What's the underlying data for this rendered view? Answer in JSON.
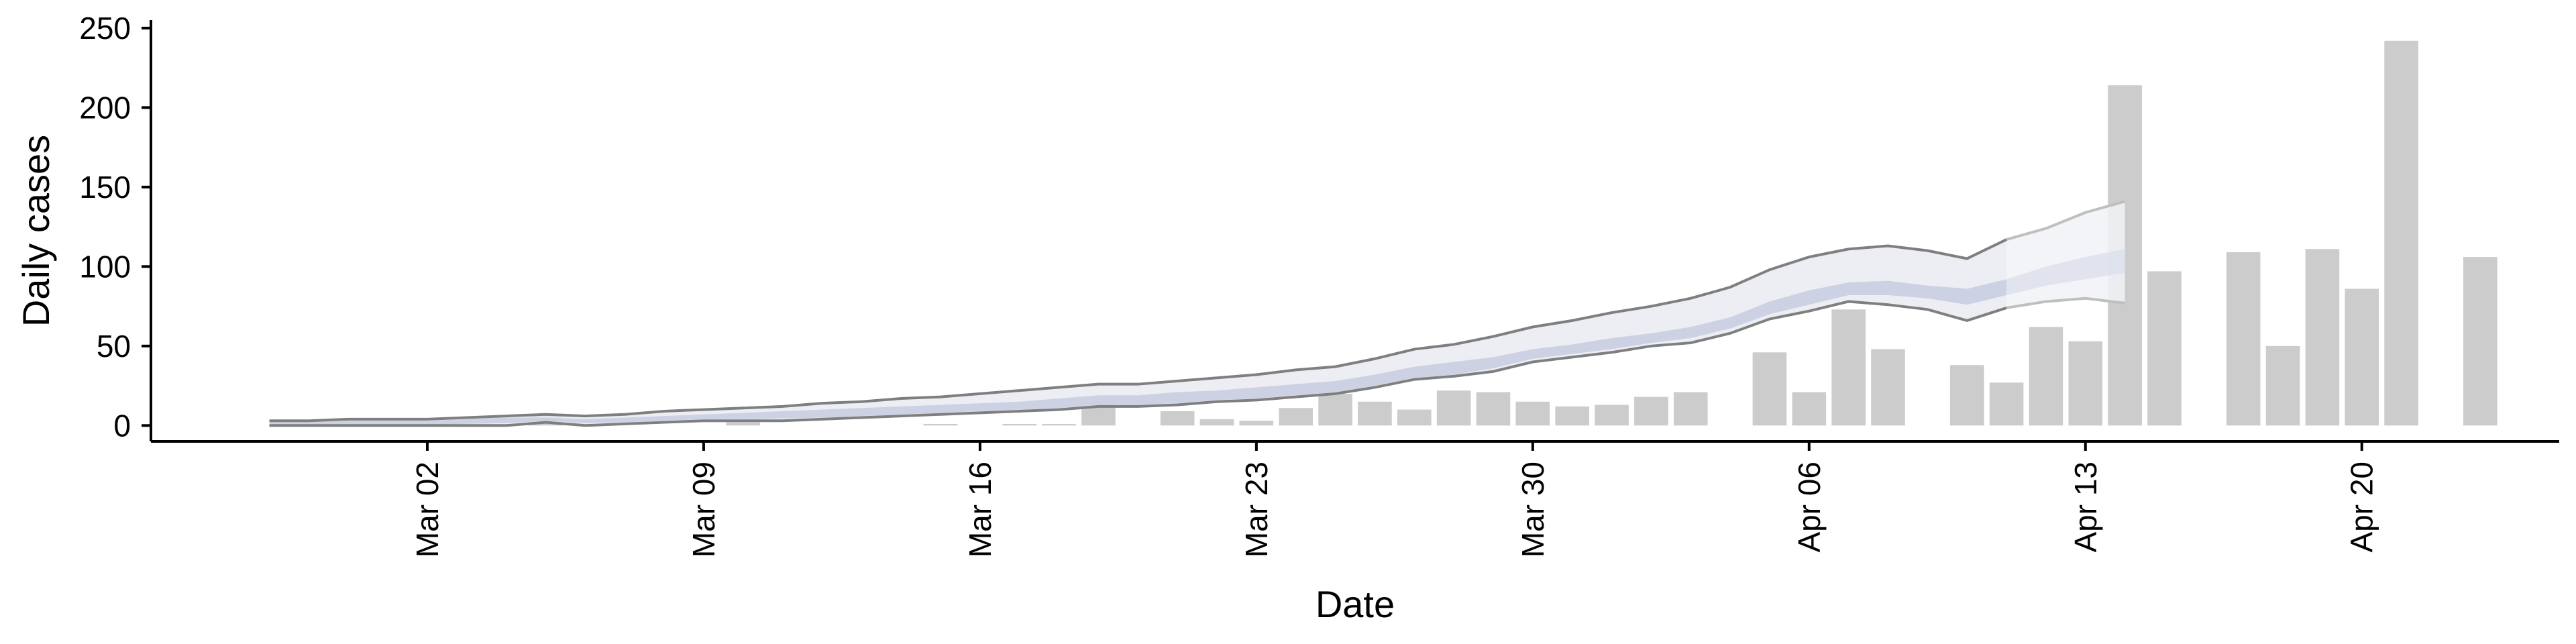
{
  "chart_data": {
    "type": "bar",
    "xlabel": "Date",
    "ylabel": "Daily cases",
    "ylim": [
      -10,
      255
    ],
    "y_ticks": [
      0,
      50,
      100,
      150,
      200,
      250
    ],
    "x_ticks": [
      {
        "date": "2020-03-02",
        "label": "Mar 02"
      },
      {
        "date": "2020-03-09",
        "label": "Mar 09"
      },
      {
        "date": "2020-03-16",
        "label": "Mar 16"
      },
      {
        "date": "2020-03-23",
        "label": "Mar 23"
      },
      {
        "date": "2020-03-30",
        "label": "Mar 30"
      },
      {
        "date": "2020-04-06",
        "label": "Apr 06"
      },
      {
        "date": "2020-04-13",
        "label": "Apr 13"
      },
      {
        "date": "2020-04-20",
        "label": "Apr 20"
      }
    ],
    "xlim": [
      "2020-02-24",
      "2020-04-25"
    ],
    "bars": {
      "dates": [
        "2020-03-05",
        "2020-03-06",
        "2020-03-10",
        "2020-03-15",
        "2020-03-17",
        "2020-03-18",
        "2020-03-19",
        "2020-03-21",
        "2020-03-22",
        "2020-03-23",
        "2020-03-24",
        "2020-03-25",
        "2020-03-26",
        "2020-03-27",
        "2020-03-28",
        "2020-03-29",
        "2020-03-30",
        "2020-03-31",
        "2020-04-01",
        "2020-04-02",
        "2020-04-03",
        "2020-04-05",
        "2020-04-06",
        "2020-04-07",
        "2020-04-08",
        "2020-04-10",
        "2020-04-11",
        "2020-04-12",
        "2020-04-13",
        "2020-04-14",
        "2020-04-15",
        "2020-04-17",
        "2020-04-18",
        "2020-04-19",
        "2020-04-20",
        "2020-04-21",
        "2020-04-23"
      ],
      "values": [
        7,
        1,
        2,
        1,
        1,
        1,
        15,
        9,
        4,
        3,
        11,
        20,
        15,
        10,
        22,
        21,
        15,
        12,
        13,
        18,
        21,
        46,
        21,
        73,
        48,
        38,
        27,
        62,
        53,
        214,
        97,
        109,
        50,
        111,
        86,
        242,
        106
      ],
      "color": "#cccccc"
    },
    "ribbon_dates": [
      "2020-02-27",
      "2020-02-28",
      "2020-02-29",
      "2020-03-01",
      "2020-03-02",
      "2020-03-03",
      "2020-03-04",
      "2020-03-05",
      "2020-03-06",
      "2020-03-07",
      "2020-03-08",
      "2020-03-09",
      "2020-03-10",
      "2020-03-11",
      "2020-03-12",
      "2020-03-13",
      "2020-03-14",
      "2020-03-15",
      "2020-03-16",
      "2020-03-17",
      "2020-03-18",
      "2020-03-19",
      "2020-03-20",
      "2020-03-21",
      "2020-03-22",
      "2020-03-23",
      "2020-03-24",
      "2020-03-25",
      "2020-03-26",
      "2020-03-27",
      "2020-03-28",
      "2020-03-29",
      "2020-03-30",
      "2020-03-31",
      "2020-04-01",
      "2020-04-02",
      "2020-04-03",
      "2020-04-04",
      "2020-04-05",
      "2020-04-06",
      "2020-04-07",
      "2020-04-08",
      "2020-04-09",
      "2020-04-10",
      "2020-04-11",
      "2020-04-12",
      "2020-04-13",
      "2020-04-14"
    ],
    "outer_upper": [
      3,
      3,
      4,
      4,
      4,
      5,
      6,
      7,
      6,
      7,
      9,
      10,
      11,
      12,
      14,
      15,
      17,
      18,
      20,
      22,
      24,
      26,
      26,
      28,
      30,
      32,
      35,
      37,
      42,
      48,
      51,
      56,
      62,
      66,
      71,
      75,
      80,
      87,
      98,
      106,
      111,
      113,
      110,
      105,
      117,
      124,
      134,
      141
    ],
    "outer_lower": [
      0,
      0,
      0,
      0,
      0,
      0,
      0,
      2,
      0,
      1,
      2,
      3,
      3,
      3,
      4,
      5,
      6,
      7,
      8,
      9,
      10,
      12,
      12,
      13,
      15,
      16,
      18,
      20,
      24,
      29,
      31,
      34,
      40,
      43,
      46,
      50,
      52,
      58,
      67,
      72,
      78,
      76,
      73,
      66,
      74,
      78,
      80,
      77
    ],
    "band_upper": [
      2.5,
      2.5,
      3,
      3,
      3,
      4,
      5,
      5,
      4,
      5,
      6,
      7,
      8,
      9,
      10,
      11,
      12,
      13,
      14,
      15,
      17,
      19,
      19,
      21,
      22,
      24,
      26,
      28,
      32,
      37,
      40,
      43,
      48,
      51,
      55,
      58,
      62,
      68,
      78,
      85,
      90,
      91,
      88,
      86,
      92,
      100,
      106,
      111
    ],
    "band_lower": [
      0.5,
      0.5,
      0.5,
      0.5,
      0.5,
      1,
      1.5,
      3,
      1.5,
      2,
      3,
      4,
      4,
      4.5,
      5,
      6,
      7,
      8,
      9,
      10,
      11,
      13,
      13,
      14,
      16,
      17,
      19,
      21,
      25,
      30,
      32,
      36,
      42,
      45,
      48,
      52,
      55,
      61,
      70,
      76,
      82,
      82,
      80,
      76,
      82,
      88,
      92,
      96
    ],
    "colors": {
      "outer_fill": "#e9ebf2",
      "outer_fill_future": "#f1f2f6",
      "band_fill": "#c7cddf",
      "band_fill_future": "#dde1ec",
      "line": "#7f7f7f",
      "line_future": "#bfbfbf",
      "axis": "#000000"
    },
    "future_from": "2020-04-11"
  }
}
